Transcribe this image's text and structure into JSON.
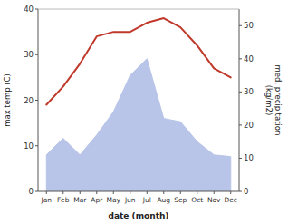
{
  "chart_data": {
    "type": "line",
    "xlabel": "date (month)",
    "ylabel": "max temp (C)",
    "y2label": "med. precipitation\n(kg/m2)",
    "categories": [
      "Jan",
      "Feb",
      "Mar",
      "Apr",
      "May",
      "Jun",
      "Jul",
      "Aug",
      "Sep",
      "Oct",
      "Nov",
      "Dec"
    ],
    "series": [
      {
        "type": "area",
        "axis": "y2",
        "color": "#b8c4e8",
        "values": [
          11,
          16,
          11,
          17,
          24,
          35,
          40,
          22,
          21,
          15,
          11,
          10.5
        ]
      },
      {
        "type": "line",
        "color": "#c0392b",
        "values": [
          19,
          23,
          28,
          34,
          35,
          35,
          37,
          38,
          36,
          32,
          27,
          25
        ]
      }
    ],
    "ylim": [
      0,
      40
    ],
    "yticks": [
      0,
      10,
      20,
      30,
      40
    ],
    "y2lim": [
      0,
      55
    ],
    "y2ticks": [
      0,
      10,
      20,
      30,
      40,
      50
    ],
    "grid": false
  }
}
